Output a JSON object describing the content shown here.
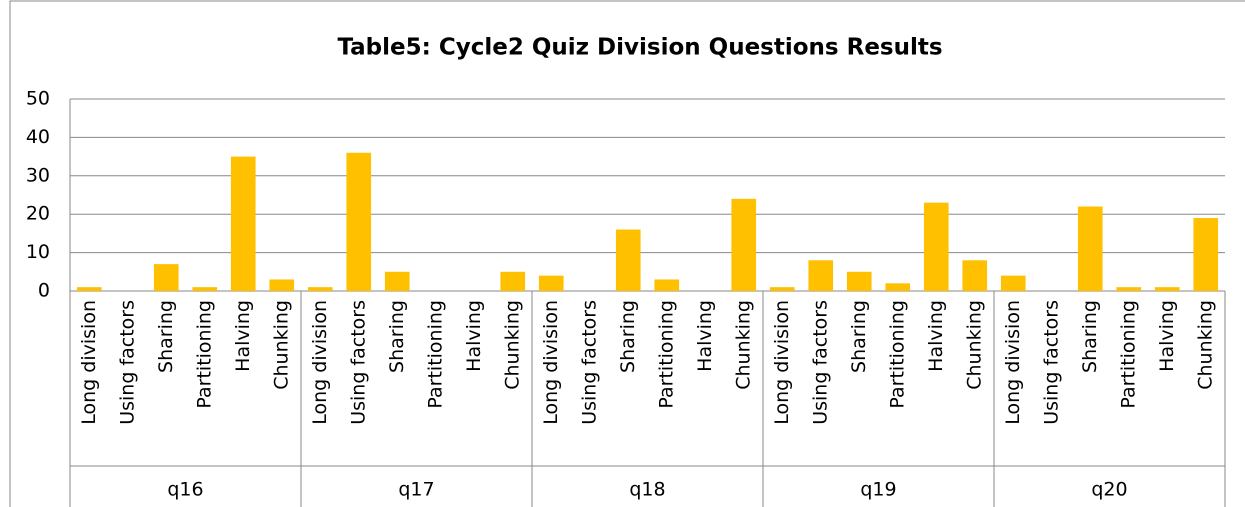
{
  "chart_data": {
    "type": "bar",
    "title": "Table5: Cycle2 Quiz Division Questions Results",
    "categories": [
      "Long division",
      "Using factors",
      "Sharing",
      "Partitioning",
      "Halving",
      "Chunking",
      "Long division",
      "Using factors",
      "Sharing",
      "Partitioning",
      "Halving",
      "Chunking",
      "Long division",
      "Using factors",
      "Sharing",
      "Partitioning",
      "Halving",
      "Chunking",
      "Long division",
      "Using factors",
      "Sharing",
      "Partitioning",
      "Halving",
      "Chunking",
      "Long division",
      "Using factors",
      "Sharing",
      "Partitioning",
      "Halving",
      "Chunking"
    ],
    "groups": [
      "q16",
      "q17",
      "q18",
      "q19",
      "q20"
    ],
    "values": [
      1,
      0,
      7,
      1,
      35,
      3,
      1,
      36,
      5,
      0,
      0,
      5,
      4,
      0,
      16,
      3,
      0,
      24,
      1,
      8,
      5,
      2,
      23,
      8,
      4,
      0,
      22,
      1,
      1,
      19
    ],
    "color": "#ffc000",
    "ylim": [
      0,
      50
    ],
    "yticks": [
      0,
      10,
      20,
      30,
      40,
      50
    ],
    "grid": true
  }
}
